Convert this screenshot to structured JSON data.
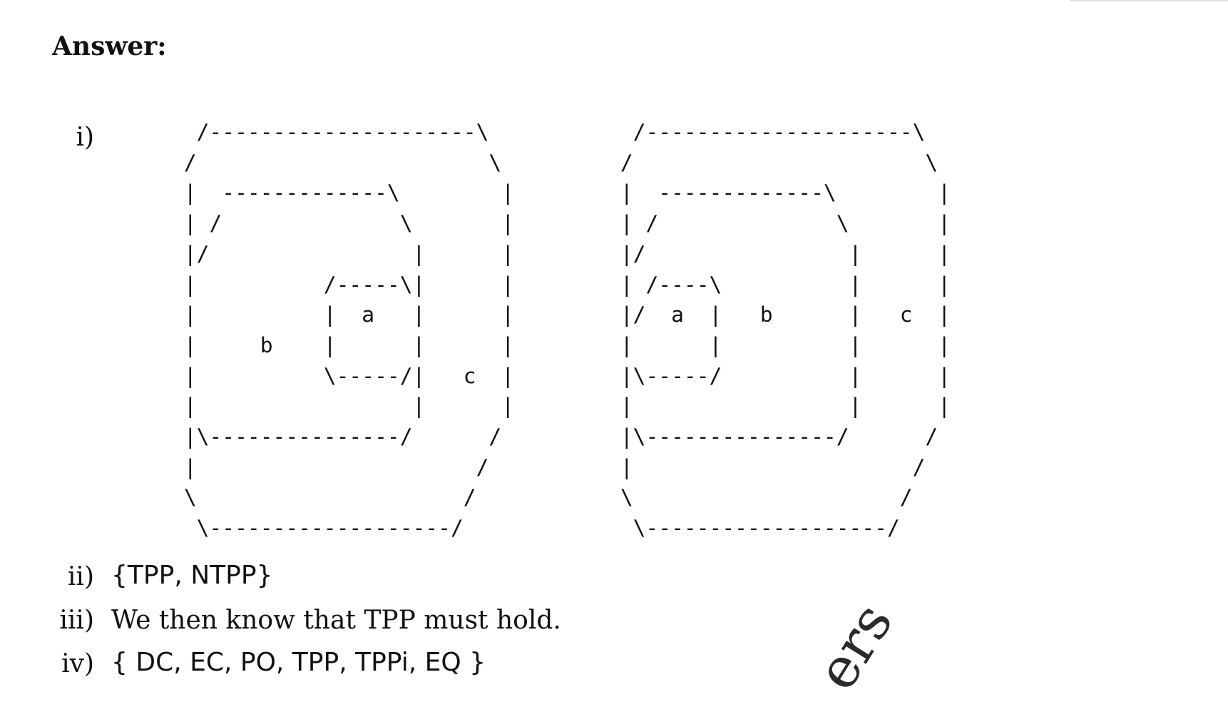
{
  "heading": "Answer:",
  "items": {
    "i": {
      "marker": "i)"
    },
    "ii": {
      "marker": "ii)",
      "text": "{TPP, NTPP}"
    },
    "iii": {
      "marker": "iii)",
      "text": "We then know that TPP must hold."
    },
    "iv": {
      "marker": "iv)",
      "text": "{ DC, EC, PO, TPP, TPPi, EQ }"
    }
  },
  "diagrams": [
    {
      "label": "tpp-nested-regions",
      "ascii": "  /---------------------\\\n /                       \\\n |  -------------\\        |\n | /              \\       |\n |/                |      |\n |          /-----\\|      |\n |          |  a   |      |\n |     b    |      |      |\n |          \\-----/|   c  |\n |                 |      |\n |\\---------------/      /\n |                      /\n \\                     /\n  \\-------------------/"
    },
    {
      "label": "tpp-nested-regions-boundary",
      "ascii": "  /---------------------\\\n /                       \\\n |  -------------\\        |\n | /              \\       |\n |/                |      |\n | /----\\          |      |\n |/  a  |   b      |   c  |\n |      |          |      |\n |\\-----/          |      |\n |                 |      |\n |\\---------------/      /\n |                      /\n \\                     /\n  \\-------------------/"
    }
  ],
  "watermark": "ers"
}
